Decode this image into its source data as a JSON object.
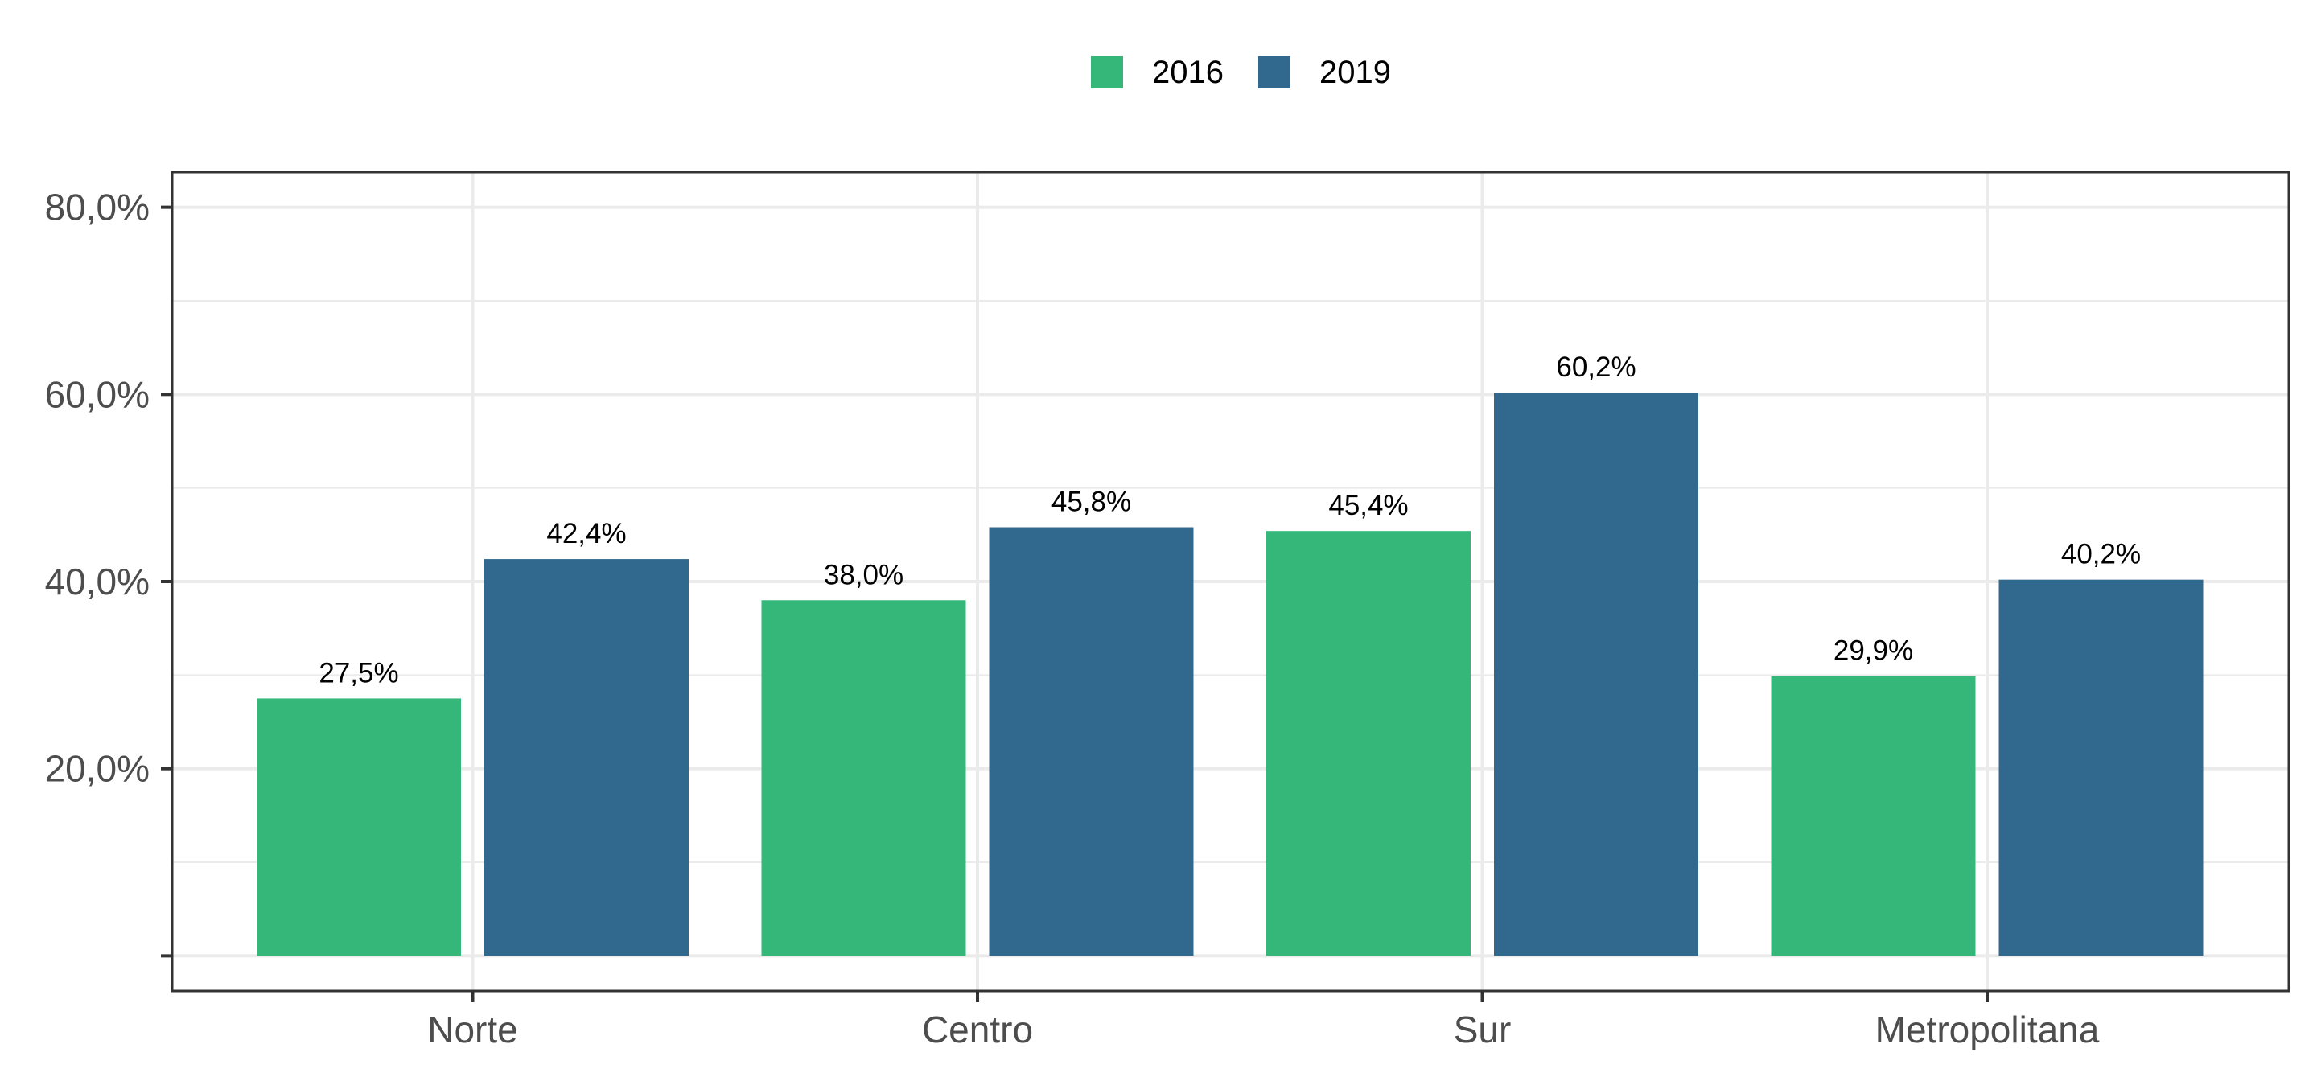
{
  "chart_data": {
    "type": "bar",
    "title": "",
    "xlabel": "",
    "ylabel": "",
    "categories": [
      "Norte",
      "Centro",
      "Sur",
      "Metropolitana"
    ],
    "series": [
      {
        "name": "2016",
        "values": [
          27.5,
          38.0,
          45.4,
          29.9
        ],
        "labels": [
          "27,5%",
          "38,0%",
          "45,4%",
          "29,9%"
        ],
        "color": "#35b779"
      },
      {
        "name": "2019",
        "values": [
          42.4,
          45.8,
          60.2,
          40.2
        ],
        "labels": [
          "42,4%",
          "45,8%",
          "60,2%",
          "40,2%"
        ],
        "color": "#31688e"
      }
    ],
    "ylim": [
      -3.75,
      83.75
    ],
    "yticks": [
      0,
      20,
      40,
      60,
      80
    ],
    "ytick_labels": [
      "",
      "20,0%",
      "40,0%",
      "60,0%",
      "80,0%"
    ],
    "grid": true,
    "legend_position": "top"
  }
}
